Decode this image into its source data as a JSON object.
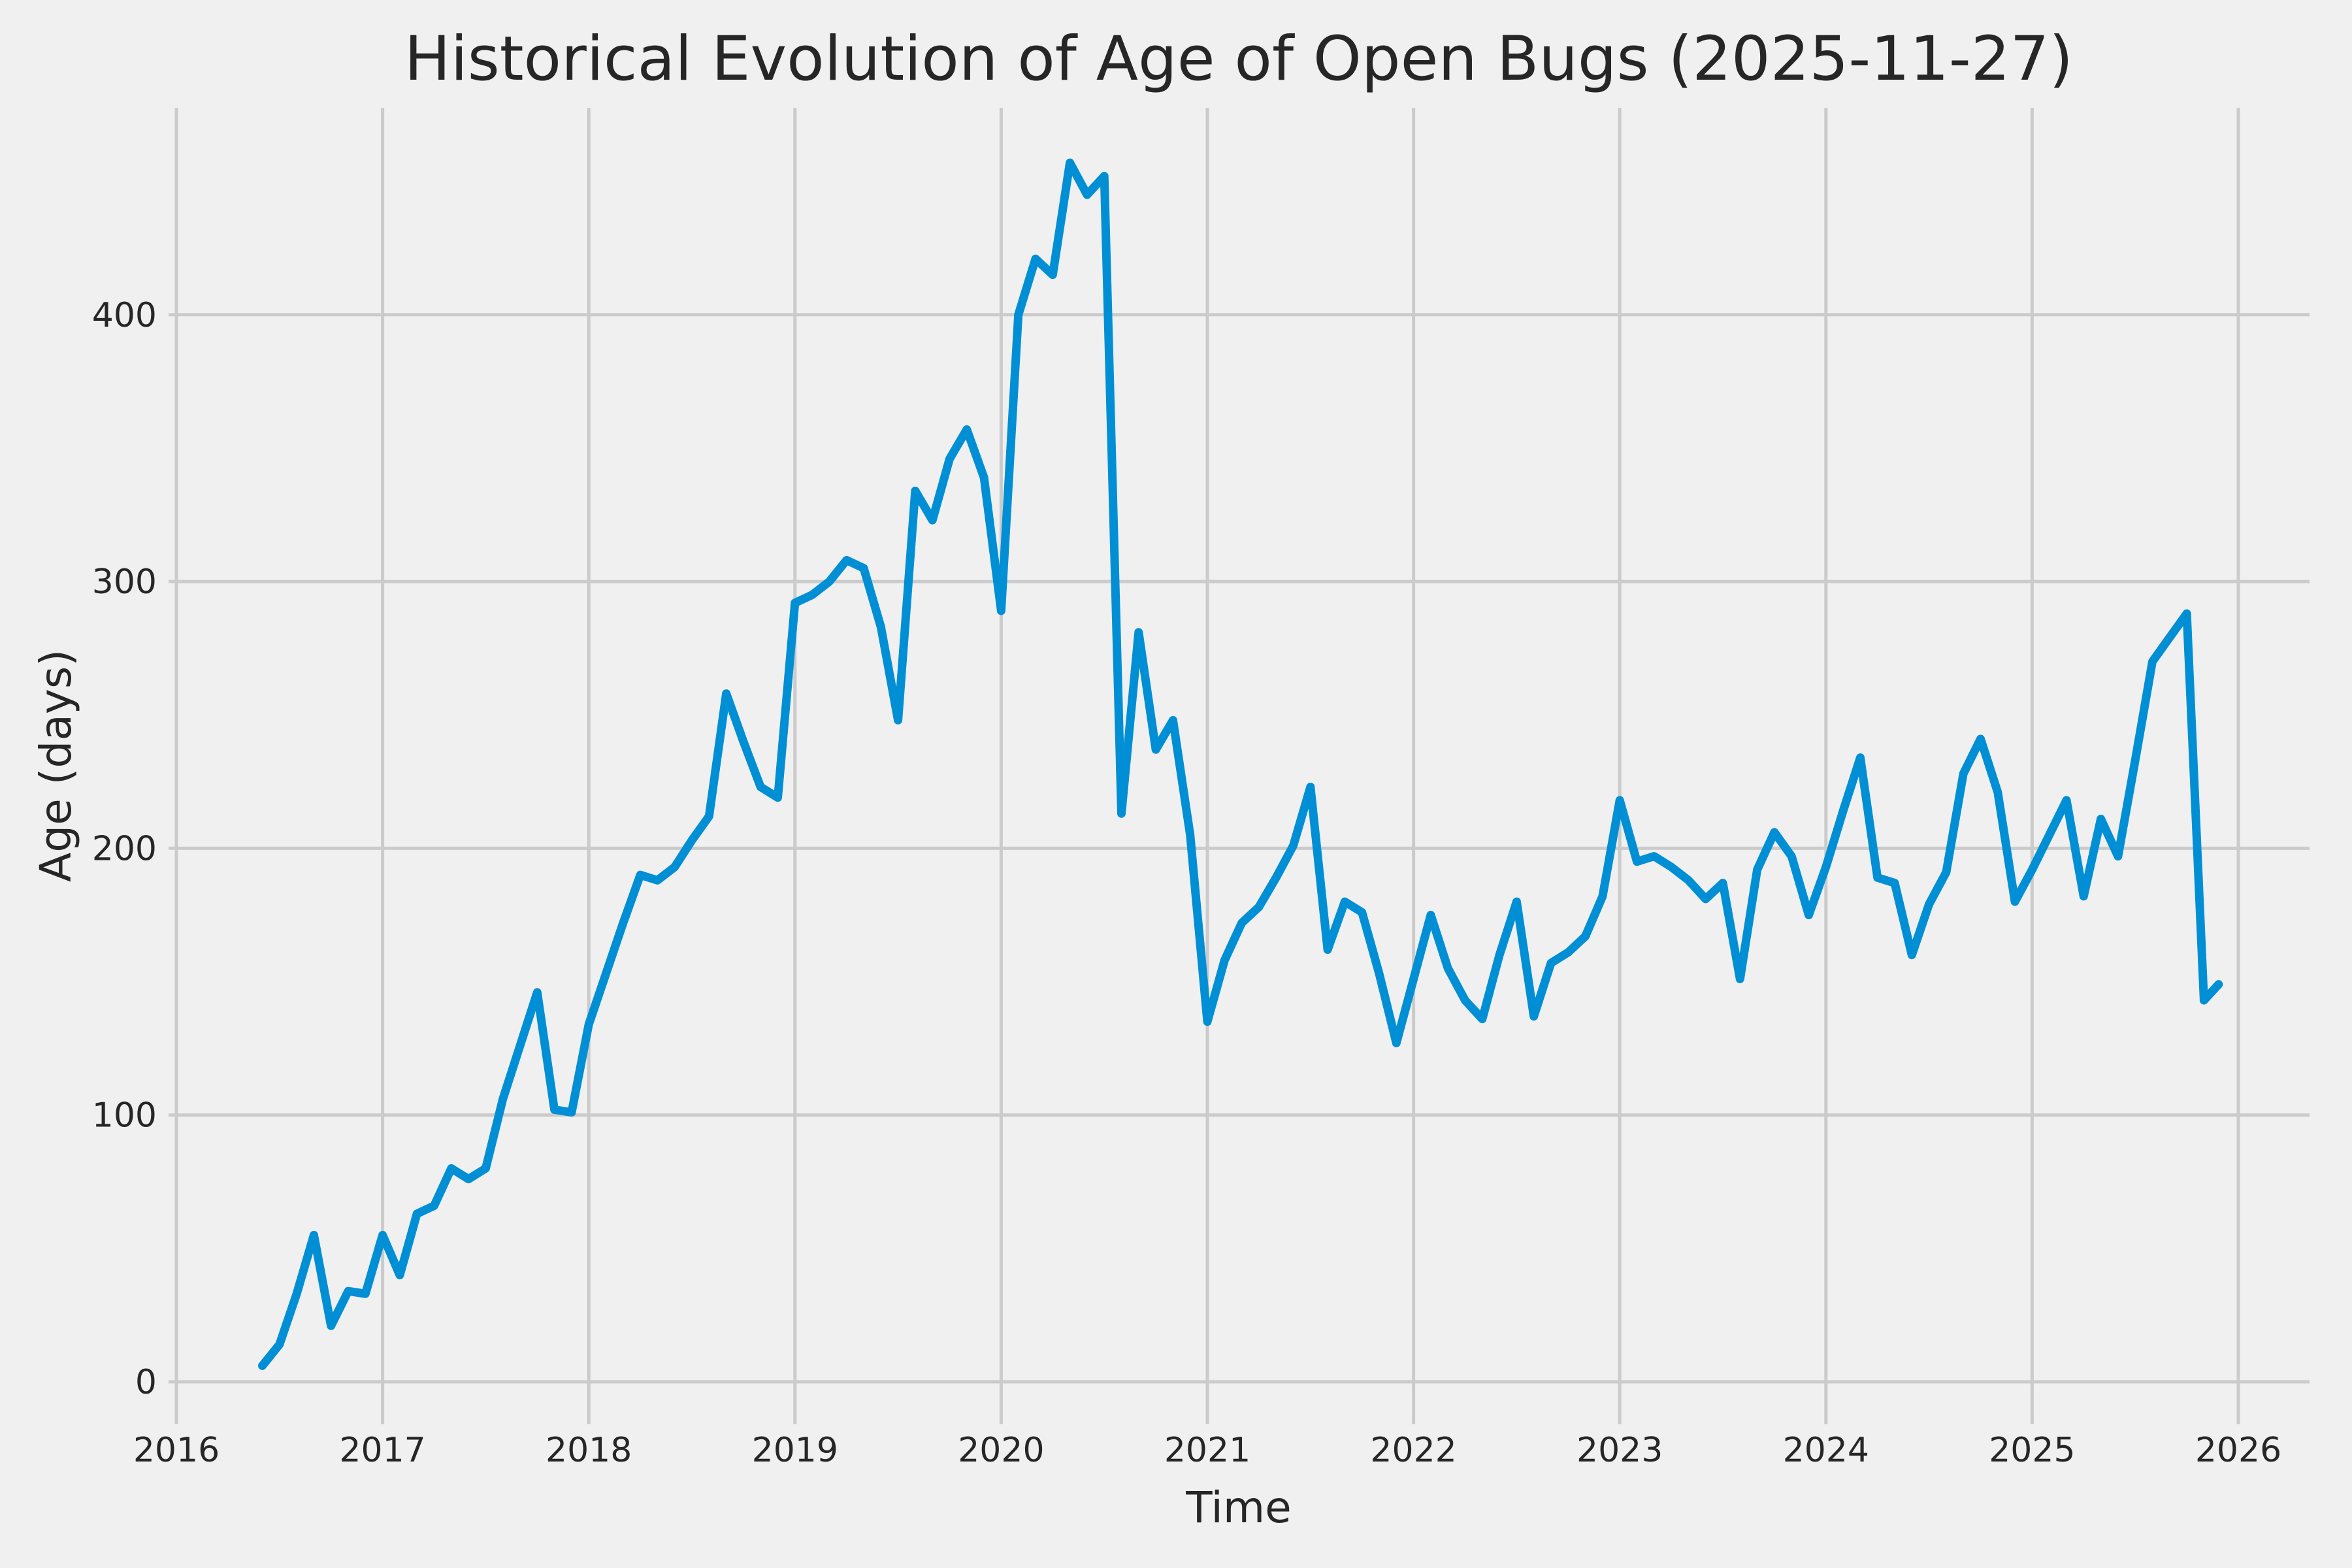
{
  "figure": {
    "background": "#f0f0f0"
  },
  "chart_data": {
    "type": "line",
    "title": "Historical Evolution of Age of Open Bugs (2025-11-27)",
    "xlabel": "Time",
    "ylabel": "Age (days)",
    "x_tick_labels": [
      "2016",
      "2017",
      "2018",
      "2019",
      "2020",
      "2021",
      "2022",
      "2023",
      "2024",
      "2025",
      "2026"
    ],
    "y_ticks": [
      0,
      100,
      200,
      300,
      400
    ],
    "xlim": [
      2015.96,
      2026.35
    ],
    "ylim": [
      -16,
      478
    ],
    "grid": true,
    "legend": false,
    "colors": {
      "line": "#008fd5",
      "grid": "#cbcbcb",
      "text": "#262626",
      "background": "#f0f0f0"
    },
    "series": [
      {
        "name": "age_of_open_bugs",
        "points": [
          [
            "2016-06",
            6
          ],
          [
            "2016-07",
            14
          ],
          [
            "2016-08",
            33
          ],
          [
            "2016-09",
            55
          ],
          [
            "2016-10",
            21
          ],
          [
            "2016-11",
            34
          ],
          [
            "2016-12",
            33
          ],
          [
            "2017-01",
            55
          ],
          [
            "2017-02",
            40
          ],
          [
            "2017-03",
            63
          ],
          [
            "2017-04",
            66
          ],
          [
            "2017-05",
            80
          ],
          [
            "2017-06",
            76
          ],
          [
            "2017-07",
            80
          ],
          [
            "2017-08",
            106
          ],
          [
            "2017-09",
            126
          ],
          [
            "2017-10",
            146
          ],
          [
            "2017-11",
            102
          ],
          [
            "2017-12",
            101
          ],
          [
            "2018-01",
            134
          ],
          [
            "2018-02",
            153
          ],
          [
            "2018-03",
            172
          ],
          [
            "2018-04",
            190
          ],
          [
            "2018-05",
            188
          ],
          [
            "2018-06",
            193
          ],
          [
            "2018-07",
            203
          ],
          [
            "2018-08",
            212
          ],
          [
            "2018-09",
            258
          ],
          [
            "2018-10",
            240
          ],
          [
            "2018-11",
            223
          ],
          [
            "2018-12",
            219
          ],
          [
            "2019-01",
            292
          ],
          [
            "2019-02",
            295
          ],
          [
            "2019-03",
            300
          ],
          [
            "2019-04",
            308
          ],
          [
            "2019-05",
            305
          ],
          [
            "2019-06",
            283
          ],
          [
            "2019-07",
            248
          ],
          [
            "2019-08",
            334
          ],
          [
            "2019-09",
            323
          ],
          [
            "2019-10",
            346
          ],
          [
            "2019-11",
            357
          ],
          [
            "2019-12",
            339
          ],
          [
            "2020-01",
            289
          ],
          [
            "2020-02",
            400
          ],
          [
            "2020-03",
            421
          ],
          [
            "2020-04",
            415
          ],
          [
            "2020-05",
            457
          ],
          [
            "2020-06",
            445
          ],
          [
            "2020-07",
            452
          ],
          [
            "2020-08",
            213
          ],
          [
            "2020-09",
            281
          ],
          [
            "2020-10",
            237
          ],
          [
            "2020-11",
            248
          ],
          [
            "2020-12",
            205
          ],
          [
            "2021-01",
            135
          ],
          [
            "2021-02",
            158
          ],
          [
            "2021-03",
            172
          ],
          [
            "2021-04",
            178
          ],
          [
            "2021-05",
            189
          ],
          [
            "2021-06",
            201
          ],
          [
            "2021-07",
            223
          ],
          [
            "2021-08",
            162
          ],
          [
            "2021-09",
            180
          ],
          [
            "2021-10",
            176
          ],
          [
            "2021-11",
            153
          ],
          [
            "2021-12",
            127
          ],
          [
            "2022-01",
            151
          ],
          [
            "2022-02",
            175
          ],
          [
            "2022-03",
            155
          ],
          [
            "2022-04",
            143
          ],
          [
            "2022-05",
            136
          ],
          [
            "2022-06",
            160
          ],
          [
            "2022-07",
            180
          ],
          [
            "2022-08",
            137
          ],
          [
            "2022-09",
            157
          ],
          [
            "2022-10",
            161
          ],
          [
            "2022-11",
            167
          ],
          [
            "2022-12",
            182
          ],
          [
            "2023-01",
            218
          ],
          [
            "2023-02",
            195
          ],
          [
            "2023-03",
            197
          ],
          [
            "2023-04",
            193
          ],
          [
            "2023-05",
            188
          ],
          [
            "2023-06",
            181
          ],
          [
            "2023-07",
            187
          ],
          [
            "2023-08",
            151
          ],
          [
            "2023-09",
            192
          ],
          [
            "2023-10",
            206
          ],
          [
            "2023-11",
            197
          ],
          [
            "2023-12",
            175
          ],
          [
            "2024-01",
            193
          ],
          [
            "2024-02",
            214
          ],
          [
            "2024-03",
            234
          ],
          [
            "2024-04",
            189
          ],
          [
            "2024-05",
            187
          ],
          [
            "2024-06",
            160
          ],
          [
            "2024-07",
            179
          ],
          [
            "2024-08",
            191
          ],
          [
            "2024-09",
            228
          ],
          [
            "2024-10",
            241
          ],
          [
            "2024-11",
            221
          ],
          [
            "2024-12",
            180
          ],
          [
            "2025-01",
            192
          ],
          [
            "2025-02",
            205
          ],
          [
            "2025-03",
            218
          ],
          [
            "2025-04",
            182
          ],
          [
            "2025-05",
            211
          ],
          [
            "2025-06",
            197
          ],
          [
            "2025-07",
            233
          ],
          [
            "2025-08",
            270
          ],
          [
            "2025-09",
            279
          ],
          [
            "2025-10",
            288
          ],
          [
            "2025-11",
            143
          ],
          [
            "2025-11-27",
            149
          ]
        ]
      }
    ]
  }
}
